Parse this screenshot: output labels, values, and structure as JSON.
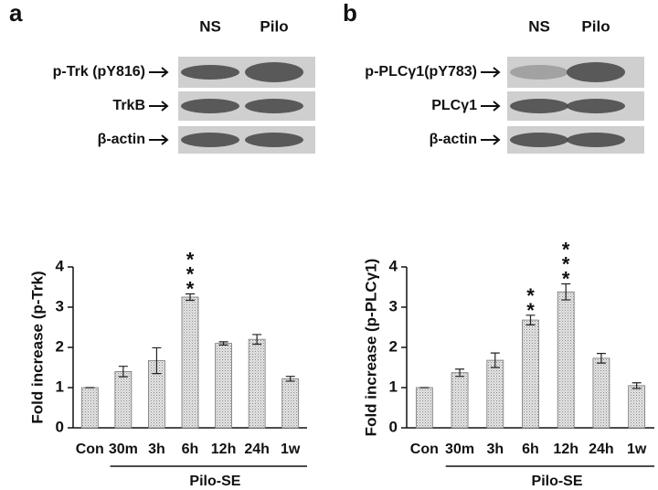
{
  "blots": [
    {
      "letter": "a",
      "lanes": [
        "NS",
        "Pilo"
      ],
      "rows": [
        "p-Trk (pY816)",
        "TrkB",
        "β-actin"
      ]
    },
    {
      "letter": "b",
      "lanes": [
        "NS",
        "Pilo"
      ],
      "rows": [
        "p-PLCγ1(pY783)",
        "PLCγ1",
        "β-actin"
      ]
    }
  ],
  "chart_data": [
    {
      "type": "bar",
      "ylabel": "Fold increase (p-Trk)",
      "categories": [
        "Con",
        "30m",
        "3h",
        "6h",
        "12h",
        "24h",
        "1w"
      ],
      "values": [
        1.0,
        1.4,
        1.67,
        3.25,
        2.1,
        2.2,
        1.22
      ],
      "errors": [
        0,
        0.13,
        0.32,
        0.08,
        0.04,
        0.12,
        0.06
      ],
      "annotations": [
        null,
        null,
        null,
        "***",
        null,
        null,
        null
      ],
      "group_label": "Pilo-SE",
      "ylim": [
        0,
        4
      ],
      "yticks": [
        0,
        1,
        2,
        3,
        4
      ],
      "color": "#d9d9d9"
    },
    {
      "type": "bar",
      "ylabel": "Fold increase (p-PLCγ1)",
      "categories": [
        "Con",
        "30m",
        "3h",
        "6h",
        "12h",
        "24h",
        "1w"
      ],
      "values": [
        1.0,
        1.37,
        1.68,
        2.68,
        3.38,
        1.73,
        1.05
      ],
      "errors": [
        0,
        0.09,
        0.18,
        0.12,
        0.2,
        0.12,
        0.07
      ],
      "annotations": [
        null,
        null,
        null,
        "**",
        "***",
        null,
        null
      ],
      "group_label": "Pilo-SE",
      "ylim": [
        0,
        4
      ],
      "yticks": [
        0,
        1,
        2,
        3,
        4
      ],
      "color": "#d9d9d9"
    }
  ]
}
